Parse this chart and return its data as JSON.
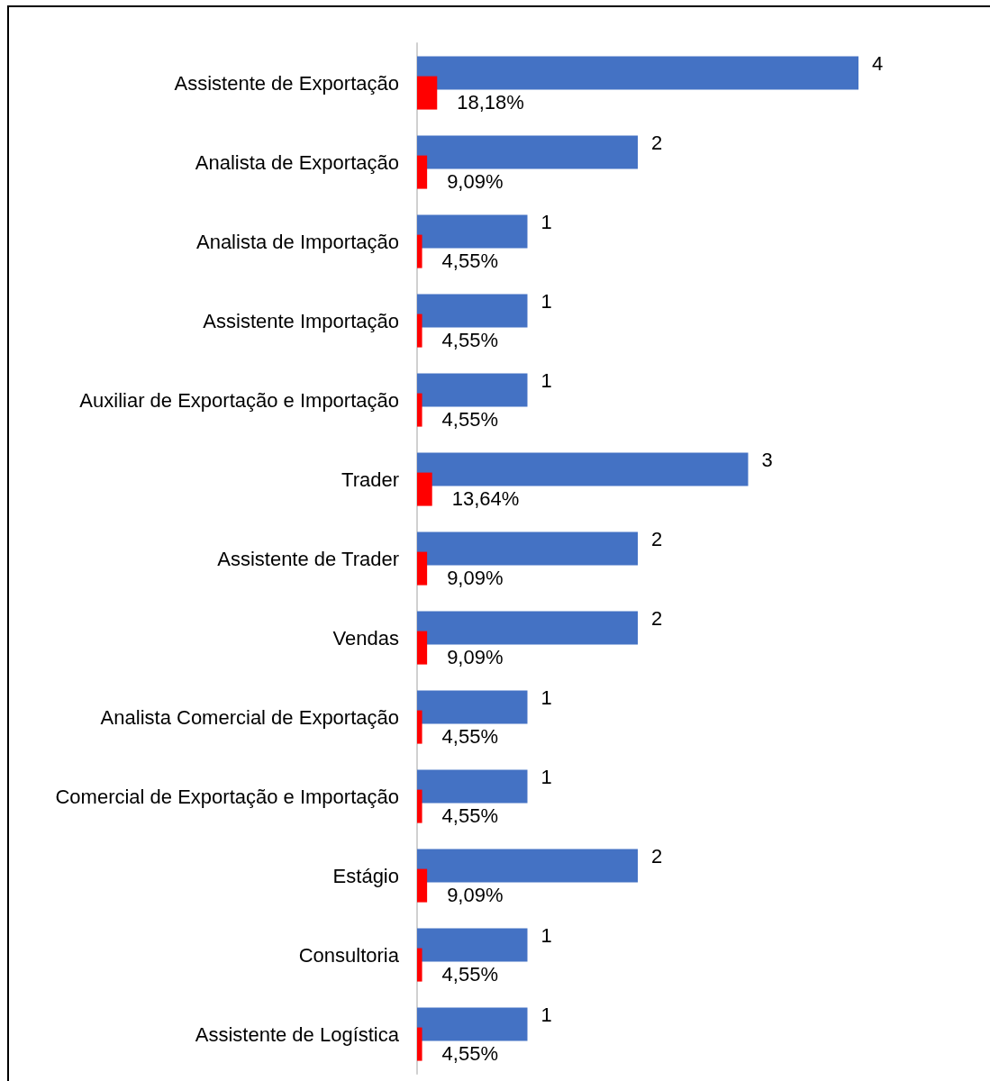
{
  "chart_data": {
    "type": "bar",
    "orientation": "horizontal",
    "tick_labels": "y",
    "grid": false,
    "categories": [
      "Assistente de Exportação",
      "Analista de Exportação",
      "Analista de Importação",
      "Assistente Importação",
      "Auxiliar de Exportação e Importação",
      "Trader",
      "Assistente de Trader",
      "Vendas",
      "Analista Comercial de Exportação",
      "Comercial de Exportação e Importação",
      "Estágio",
      "Consultoria",
      "Assistente de Logística"
    ],
    "series": [
      {
        "color": "#4472c4",
        "values": [
          4,
          2,
          1,
          1,
          1,
          3,
          2,
          2,
          1,
          1,
          2,
          1,
          1
        ],
        "value_labels": [
          "4",
          "2",
          "1",
          "1",
          "1",
          "3",
          "2",
          "2",
          "1",
          "1",
          "2",
          "1",
          "1"
        ]
      },
      {
        "color": "#ff0000",
        "values": [
          0.1818,
          0.0909,
          0.0455,
          0.0455,
          0.0455,
          0.1364,
          0.0909,
          0.0909,
          0.0455,
          0.0455,
          0.0909,
          0.0455,
          0.0455
        ],
        "value_labels": [
          "18,18%",
          "9,09%",
          "4,55%",
          "4,55%",
          "4,55%",
          "13,64%",
          "9,09%",
          "9,09%",
          "4,55%",
          "4,55%",
          "9,09%",
          "4,55%",
          "4,55%"
        ]
      }
    ]
  }
}
